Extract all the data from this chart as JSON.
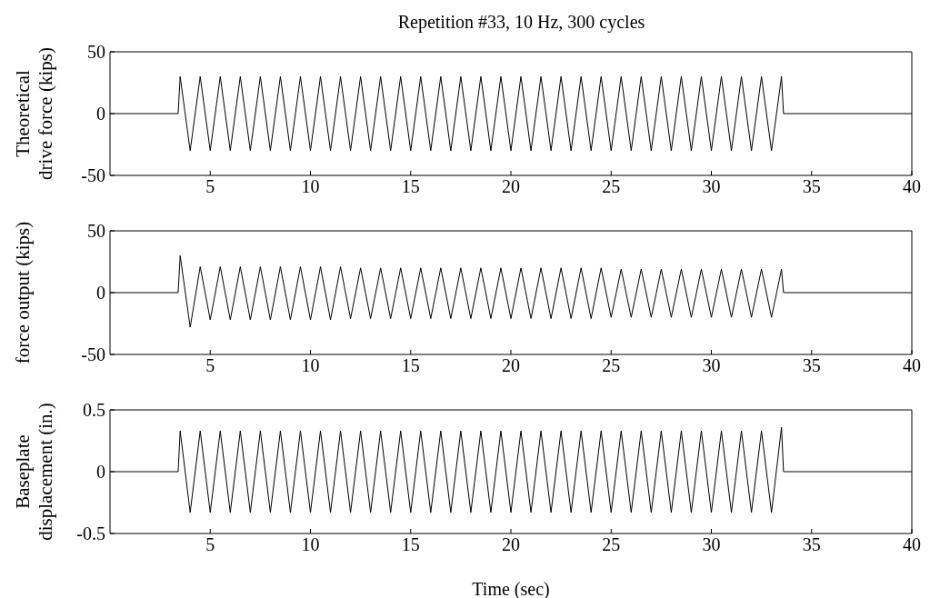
{
  "chart_data": [
    {
      "type": "line",
      "title": "Repetition #33, 10 Hz, 300 cycles",
      "ylabel": "Theoretical\ndrive force (kips)",
      "xlim": [
        0,
        40
      ],
      "xticks": [
        5,
        10,
        15,
        20,
        25,
        30,
        35,
        40
      ],
      "ylim": [
        -50,
        50
      ],
      "yticks": [
        -50,
        0,
        50
      ],
      "marker": "none",
      "line_style": "solid",
      "x": [
        0,
        3.4,
        3.5,
        4,
        4.5,
        5,
        5.5,
        6,
        6.5,
        7,
        7.5,
        8,
        8.5,
        9,
        9.5,
        10,
        10.5,
        11,
        11.5,
        12,
        12.5,
        13,
        13.5,
        14,
        14.5,
        15,
        15.5,
        16,
        16.5,
        17,
        17.5,
        18,
        18.5,
        19,
        19.5,
        20,
        20.5,
        21,
        21.5,
        22,
        22.5,
        23,
        23.5,
        24,
        24.5,
        25,
        25.5,
        26,
        26.5,
        27,
        27.5,
        28,
        28.5,
        29,
        29.5,
        30,
        30.5,
        31,
        31.5,
        32,
        32.5,
        33,
        33.5,
        33.6,
        40
      ],
      "series": [
        {
          "color": "#000000",
          "values": [
            0,
            0,
            30,
            -30,
            30,
            -30,
            30,
            -30,
            30,
            -30,
            30,
            -30,
            30,
            -30,
            30,
            -30,
            30,
            -30,
            30,
            -30,
            30,
            -30,
            30,
            -30,
            30,
            -30,
            30,
            -30,
            30,
            -30,
            30,
            -30,
            30,
            -30,
            30,
            -30,
            30,
            -30,
            30,
            -30,
            30,
            -30,
            30,
            -30,
            30,
            -30,
            30,
            -30,
            30,
            -30,
            30,
            -30,
            30,
            -30,
            30,
            -30,
            30,
            -30,
            30,
            -30,
            30,
            -30,
            30,
            0,
            0
          ]
        }
      ]
    },
    {
      "type": "line",
      "ylabel": "force output (kips)",
      "xlim": [
        0,
        40
      ],
      "xticks": [
        5,
        10,
        15,
        20,
        25,
        30,
        35,
        40
      ],
      "ylim": [
        -50,
        50
      ],
      "yticks": [
        -50,
        0,
        50
      ],
      "marker": "none",
      "line_style": "solid",
      "x": [
        0,
        3.4,
        3.5,
        4,
        4.5,
        5,
        5.5,
        6,
        6.5,
        7,
        7.5,
        8,
        8.5,
        9,
        9.5,
        10,
        10.5,
        11,
        11.5,
        12,
        12.5,
        13,
        13.5,
        14,
        14.5,
        15,
        15.5,
        16,
        16.5,
        17,
        17.5,
        18,
        18.5,
        19,
        19.5,
        20,
        20.5,
        21,
        21.5,
        22,
        22.5,
        23,
        23.5,
        24,
        24.5,
        25,
        25.5,
        26,
        26.5,
        27,
        27.5,
        28,
        28.5,
        29,
        29.5,
        30,
        30.5,
        31,
        31.5,
        32,
        32.5,
        33,
        33.5,
        33.6,
        40
      ],
      "series": [
        {
          "color": "#000000",
          "values": [
            0,
            0,
            30,
            -28,
            21,
            -22,
            21,
            -22,
            21,
            -22,
            21,
            -22,
            21,
            -22,
            21,
            -22,
            21,
            -22,
            21,
            -21,
            20,
            -21,
            20,
            -21,
            20,
            -21,
            20,
            -21,
            20,
            -21,
            20,
            -21,
            20,
            -21,
            20,
            -21,
            20,
            -21,
            20,
            -21,
            20,
            -21,
            20,
            -21,
            20,
            -20,
            19,
            -20,
            19,
            -20,
            19,
            -20,
            19,
            -20,
            19,
            -20,
            19,
            -20,
            19,
            -20,
            19,
            -20,
            19,
            0,
            0
          ]
        }
      ]
    },
    {
      "type": "line",
      "xlabel": "Time (sec)",
      "ylabel": "Baseplate\ndisplacement (in.)",
      "xlim": [
        0,
        40
      ],
      "xticks": [
        5,
        10,
        15,
        20,
        25,
        30,
        35,
        40
      ],
      "ylim": [
        -0.5,
        0.5
      ],
      "yticks": [
        -0.5,
        0,
        0.5
      ],
      "marker": "none",
      "line_style": "solid",
      "x": [
        0,
        3.4,
        3.5,
        4,
        4.5,
        5,
        5.5,
        6,
        6.5,
        7,
        7.5,
        8,
        8.5,
        9,
        9.5,
        10,
        10.5,
        11,
        11.5,
        12,
        12.5,
        13,
        13.5,
        14,
        14.5,
        15,
        15.5,
        16,
        16.5,
        17,
        17.5,
        18,
        18.5,
        19,
        19.5,
        20,
        20.5,
        21,
        21.5,
        22,
        22.5,
        23,
        23.5,
        24,
        24.5,
        25,
        25.5,
        26,
        26.5,
        27,
        27.5,
        28,
        28.5,
        29,
        29.5,
        30,
        30.5,
        31,
        31.5,
        32,
        32.5,
        33,
        33.5,
        33.6,
        40
      ],
      "series": [
        {
          "color": "#000000",
          "values": [
            0,
            0,
            0.33,
            -0.33,
            0.33,
            -0.33,
            0.33,
            -0.33,
            0.33,
            -0.33,
            0.33,
            -0.33,
            0.33,
            -0.33,
            0.33,
            -0.33,
            0.33,
            -0.33,
            0.33,
            -0.33,
            0.33,
            -0.33,
            0.33,
            -0.33,
            0.33,
            -0.33,
            0.33,
            -0.33,
            0.33,
            -0.33,
            0.33,
            -0.33,
            0.33,
            -0.33,
            0.33,
            -0.33,
            0.33,
            -0.33,
            0.33,
            -0.33,
            0.33,
            -0.33,
            0.33,
            -0.33,
            0.33,
            -0.33,
            0.33,
            -0.33,
            0.33,
            -0.33,
            0.33,
            -0.33,
            0.33,
            -0.33,
            0.33,
            -0.33,
            0.33,
            -0.33,
            0.33,
            -0.33,
            0.33,
            -0.33,
            0.36,
            0,
            0
          ]
        }
      ]
    }
  ]
}
